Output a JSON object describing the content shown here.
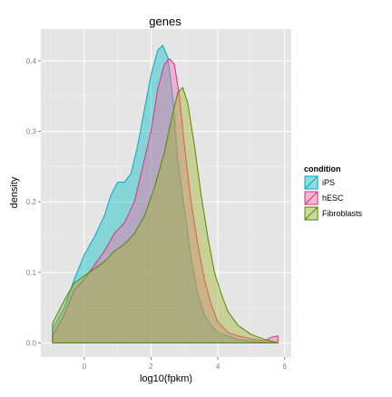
{
  "chart_data": {
    "type": "area",
    "title": "genes",
    "xlabel": "log10(fpkm)",
    "ylabel": "density",
    "xlim": [
      -1.3,
      6.2
    ],
    "ylim": [
      -0.02,
      0.445
    ],
    "x_ticks": [
      0,
      2,
      4,
      6
    ],
    "x_tick_labels": [
      "0",
      "2",
      "4",
      "6"
    ],
    "y_ticks": [
      0.0,
      0.1,
      0.2,
      0.3,
      0.4
    ],
    "y_tick_labels": [
      "0.0",
      "0.1",
      "0.2",
      "0.3",
      "0.4"
    ],
    "grid": true,
    "legend_title": "condition",
    "legend_position": "right",
    "series": [
      {
        "name": "iPS",
        "line_color": "#00a9c7",
        "fill_color": "#00bfc4",
        "x": [
          -0.95,
          -0.6,
          -0.3,
          0.0,
          0.3,
          0.6,
          0.8,
          1.0,
          1.2,
          1.4,
          1.6,
          1.8,
          2.0,
          2.2,
          2.35,
          2.5,
          2.65,
          2.8,
          3.0,
          3.2,
          3.4,
          3.6,
          3.8,
          4.0,
          4.3,
          4.6,
          5.0,
          5.4,
          5.8
        ],
        "y": [
          0.02,
          0.05,
          0.09,
          0.125,
          0.15,
          0.18,
          0.21,
          0.228,
          0.228,
          0.24,
          0.28,
          0.33,
          0.38,
          0.415,
          0.422,
          0.405,
          0.35,
          0.26,
          0.19,
          0.12,
          0.07,
          0.04,
          0.025,
          0.015,
          0.01,
          0.005,
          0.003,
          0.001,
          0.0
        ]
      },
      {
        "name": "hESC",
        "line_color": "#e7298a",
        "fill_color": "#f768a1",
        "x": [
          -0.95,
          -0.6,
          -0.3,
          0.0,
          0.3,
          0.6,
          0.9,
          1.2,
          1.5,
          1.8,
          2.0,
          2.2,
          2.4,
          2.55,
          2.7,
          2.85,
          3.0,
          3.2,
          3.4,
          3.6,
          3.8,
          4.0,
          4.3,
          4.6,
          5.0,
          5.4,
          5.6,
          5.8
        ],
        "y": [
          0.01,
          0.04,
          0.075,
          0.09,
          0.11,
          0.13,
          0.155,
          0.17,
          0.2,
          0.26,
          0.3,
          0.36,
          0.395,
          0.403,
          0.395,
          0.35,
          0.28,
          0.2,
          0.14,
          0.09,
          0.055,
          0.03,
          0.015,
          0.01,
          0.006,
          0.003,
          0.008,
          0.01
        ]
      },
      {
        "name": "Fibroblasts",
        "line_color": "#4d8a00",
        "fill_color": "#9fb327",
        "x": [
          -0.95,
          -0.6,
          -0.3,
          0.0,
          0.3,
          0.6,
          0.9,
          1.2,
          1.5,
          1.8,
          2.1,
          2.4,
          2.6,
          2.8,
          2.95,
          3.1,
          3.3,
          3.5,
          3.7,
          3.9,
          4.1,
          4.3,
          4.6,
          5.0,
          5.4,
          5.8
        ],
        "y": [
          0.028,
          0.06,
          0.085,
          0.095,
          0.105,
          0.115,
          0.13,
          0.14,
          0.155,
          0.18,
          0.22,
          0.27,
          0.315,
          0.355,
          0.362,
          0.34,
          0.28,
          0.21,
          0.15,
          0.1,
          0.07,
          0.045,
          0.025,
          0.012,
          0.005,
          0.0
        ]
      }
    ]
  }
}
